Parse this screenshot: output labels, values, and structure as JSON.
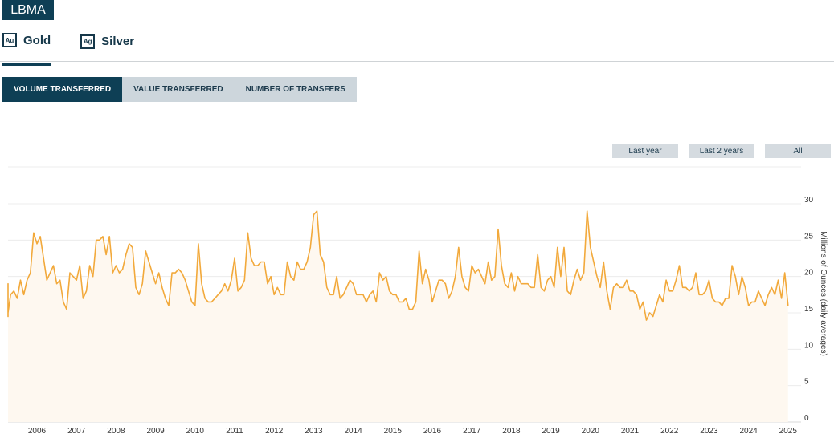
{
  "brand": "LBMA",
  "metals": [
    {
      "symbol": "Au",
      "label": "Gold"
    },
    {
      "symbol": "Ag",
      "label": "Silver"
    }
  ],
  "metric_tabs": [
    "VOLUME TRANSFERRED",
    "VALUE TRANSFERRED",
    "NUMBER OF TRANSFERS"
  ],
  "range_buttons": [
    "Last year",
    "Last 2 years",
    "All"
  ],
  "colors": {
    "line": "#f2a93b",
    "fill": "#fef8f0",
    "accent": "#0e3f55"
  },
  "chart_data": {
    "type": "area",
    "ylabel": "Millions of Ounces (daily averages)",
    "ylim": [
      0,
      30
    ],
    "yticks": [
      0,
      5,
      10,
      15,
      20,
      25,
      30
    ],
    "xticks": [
      "2006",
      "2007",
      "2008",
      "2009",
      "2010",
      "2011",
      "2012",
      "2013",
      "2014",
      "2015",
      "2016",
      "2017",
      "2018",
      "2019",
      "2020",
      "2021",
      "2022",
      "2023",
      "2024",
      "2025"
    ],
    "grid": true,
    "series": [
      {
        "start": "2005-07",
        "frequency": "monthly",
        "values": [
          15.0,
          19.0,
          14.5,
          15.0,
          17.5,
          18.0,
          17.0,
          19.5,
          17.5,
          19.5,
          20.5,
          26.0,
          24.5,
          25.5,
          22.5,
          19.5,
          20.5,
          21.5,
          19.0,
          19.5,
          16.5,
          15.5,
          20.5,
          20.0,
          19.5,
          21.5,
          17.0,
          18.0,
          21.5,
          20.0,
          25.0,
          25.0,
          25.5,
          23.0,
          25.5,
          20.5,
          21.5,
          20.5,
          21.0,
          23.0,
          24.5,
          24.0,
          18.5,
          17.5,
          19.0,
          23.5,
          22.0,
          20.5,
          19.0,
          20.5,
          18.5,
          17.0,
          16.0,
          20.5,
          20.5,
          21.0,
          20.5,
          19.5,
          18.0,
          16.5,
          16.0,
          24.5,
          19.0,
          17.0,
          16.5,
          16.5,
          17.0,
          17.5,
          18.0,
          19.0,
          18.0,
          19.5,
          22.5,
          18.0,
          18.5,
          19.5,
          26.0,
          22.5,
          21.5,
          21.5,
          22.0,
          22.0,
          19.0,
          20.0,
          17.5,
          18.5,
          17.5,
          17.5,
          22.0,
          20.0,
          19.5,
          22.0,
          21.0,
          21.0,
          22.0,
          24.0,
          28.5,
          29.0,
          23.0,
          22.0,
          18.5,
          17.5,
          17.5,
          20.0,
          17.0,
          17.5,
          18.5,
          19.5,
          19.0,
          17.5,
          17.5,
          17.5,
          16.5,
          17.5,
          18.0,
          16.5,
          20.5,
          19.5,
          20.0,
          18.0,
          17.5,
          17.5,
          16.5,
          16.5,
          17.0,
          15.5,
          15.5,
          16.5,
          23.5,
          19.0,
          21.0,
          19.5,
          16.5,
          18.0,
          19.5,
          19.5,
          19.0,
          17.0,
          18.0,
          20.0,
          24.0,
          20.0,
          18.5,
          18.0,
          21.5,
          20.5,
          21.0,
          20.0,
          19.0,
          22.0,
          19.5,
          20.0,
          26.5,
          21.5,
          19.0,
          18.5,
          20.5,
          18.0,
          20.0,
          19.0,
          19.0,
          19.0,
          18.5,
          18.5,
          23.0,
          18.5,
          18.0,
          19.5,
          20.0,
          18.5,
          24.0,
          20.0,
          24.0,
          18.0,
          17.5,
          19.5,
          21.0,
          19.5,
          20.5,
          29.0,
          24.0,
          22.0,
          20.0,
          18.5,
          22.0,
          18.0,
          15.5,
          18.5,
          19.0,
          18.5,
          18.5,
          19.5,
          18.0,
          18.0,
          17.5,
          15.5,
          16.5,
          14.0,
          15.0,
          14.5,
          16.0,
          17.5,
          16.5,
          19.5,
          18.0,
          18.0,
          19.5,
          21.5,
          18.5,
          18.5,
          18.0,
          18.5,
          20.5,
          17.5,
          17.5,
          18.0,
          19.5,
          17.0,
          16.5,
          16.5,
          16.0,
          17.0,
          17.0,
          21.5,
          20.0,
          17.5,
          20.0,
          18.5,
          16.0,
          16.5,
          16.5,
          18.0,
          17.0,
          16.0,
          17.5,
          18.5,
          17.5,
          19.5,
          17.0,
          20.5,
          16.0
        ]
      }
    ]
  }
}
